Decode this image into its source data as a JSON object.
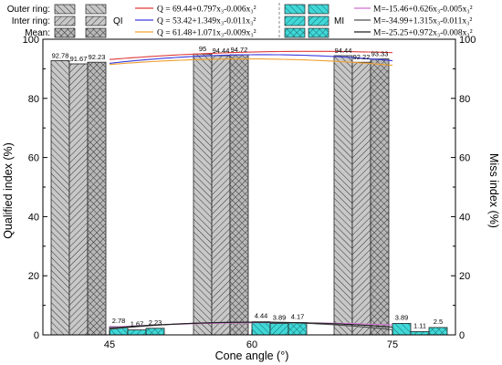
{
  "chart_data": {
    "type": "bar",
    "xlabel": "Cone angle (°)",
    "ylabel_left": "Qualified index (%)",
    "ylabel_right": "Miss index (%)",
    "categories": [
      "45",
      "60",
      "75"
    ],
    "ylim": [
      0,
      100
    ],
    "y_ticks": [
      "0",
      "20",
      "40",
      "60",
      "80",
      "100"
    ],
    "grid": false,
    "qi_series": [
      {
        "name": "Outer ring",
        "pattern": "diag-right",
        "values": [
          92.78,
          95,
          94.44
        ]
      },
      {
        "name": "Inter ring",
        "pattern": "diag-left",
        "values": [
          91.67,
          94.44,
          92.22
        ]
      },
      {
        "name": "Mean",
        "pattern": "cross",
        "values": [
          92.23,
          94.72,
          93.33
        ]
      }
    ],
    "mi_series": [
      {
        "name": "Outer ring",
        "pattern": "diag-right",
        "values": [
          2.78,
          4.44,
          3.89
        ]
      },
      {
        "name": "Inter ring",
        "pattern": "diag-left",
        "values": [
          1.67,
          3.89,
          1.11
        ]
      },
      {
        "name": "Mean",
        "pattern": "cross",
        "values": [
          2.23,
          4.17,
          2.5
        ]
      }
    ],
    "qi_value_labels": [
      [
        "92.78",
        "91.67",
        "92.23"
      ],
      [
        "95",
        "94.44",
        "94.72"
      ],
      [
        "94.44",
        "92.22",
        "93.33"
      ]
    ],
    "mi_value_labels": [
      [
        "2.78",
        "1.67",
        "2.23"
      ],
      [
        "4.44",
        "3.89",
        "4.17"
      ],
      [
        "3.89",
        "1.11",
        "2.5"
      ]
    ],
    "qi_fits": [
      {
        "a": 69.44,
        "b": 0.797,
        "c": -0.006,
        "color": "#e03a3a"
      },
      {
        "a": 53.42,
        "b": 1.349,
        "c": -0.011,
        "color": "#3a3ae0"
      },
      {
        "a": 61.48,
        "b": 1.071,
        "c": -0.009,
        "color": "#f0a030"
      }
    ],
    "mi_fits": [
      {
        "a": -15.46,
        "b": 0.626,
        "c": -0.005,
        "color": "#d070d0"
      },
      {
        "a": -34.99,
        "b": 1.315,
        "c": -0.011,
        "color": "#505050"
      },
      {
        "a": -25.25,
        "b": 0.972,
        "c": -0.008,
        "color": "#202020"
      }
    ],
    "legend": {
      "row_labels": [
        "Outer ring:",
        "Inter ring:",
        "Mean:"
      ],
      "qi_label": "QI",
      "mi_label": "MI",
      "qi_equations": [
        "Q = 69.44+0.797x₃-0.006x₃²",
        "Q = 53.42+1.349x₃-0.011x₃²",
        "Q = 61.48+1.071x₃-0.009x₃²"
      ],
      "mi_equations": [
        "M=-15.46+0.626x₃-0.005x₃²",
        "M=-34.99+1.315x₃-0.011x₃²",
        "M=-25.25+0.972x₃-0.008x₃²"
      ]
    },
    "colors": {
      "qi_fill": "#c8c8c8",
      "mi_fill": "#40d8d8",
      "axis": "#000000"
    }
  }
}
